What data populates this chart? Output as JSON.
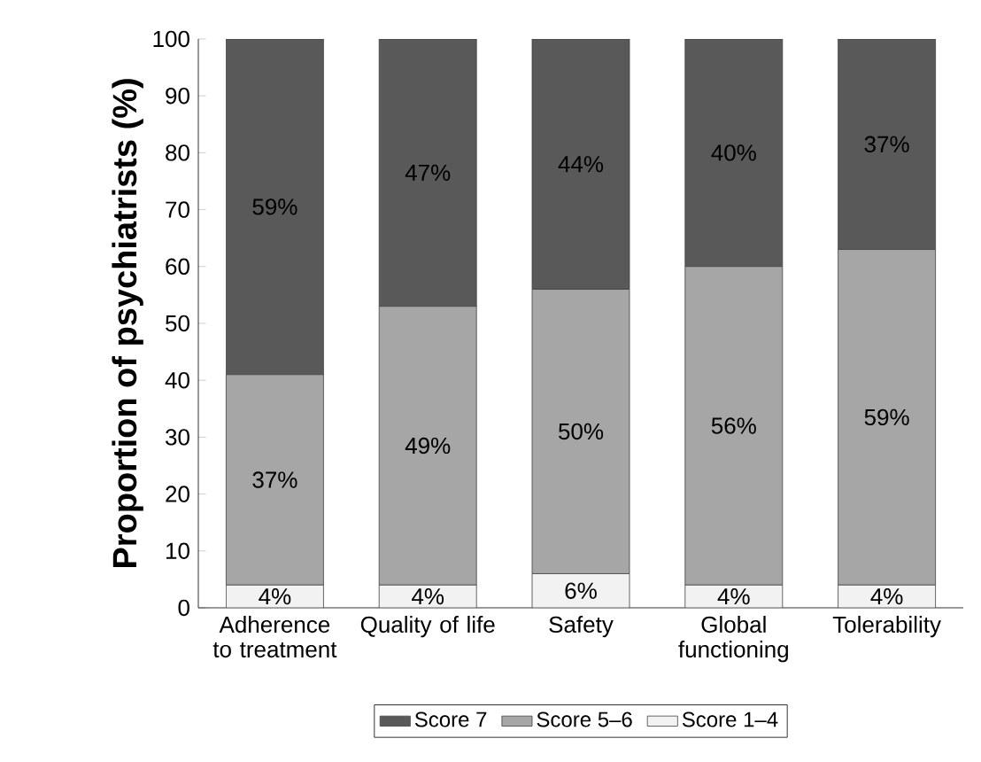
{
  "chart_data": {
    "type": "bar",
    "stacked": true,
    "ylabel": "Proportion of psychiatrists (%)",
    "categories": [
      "Adherence to treatment",
      "Quality of life",
      "Safety",
      "Global functioning",
      "Tolerability"
    ],
    "series": [
      {
        "name": "Score 1–4",
        "color": "#f2f2f2",
        "values": [
          4,
          4,
          6,
          4,
          4
        ],
        "value_labels": [
          "4%",
          "4%",
          "6%",
          "4%",
          "4%"
        ]
      },
      {
        "name": "Score 5–6",
        "color": "#a6a6a6",
        "values": [
          37,
          49,
          50,
          56,
          59
        ],
        "value_labels": [
          "37%",
          "49%",
          "50%",
          "56%",
          "59%"
        ]
      },
      {
        "name": "Score 7",
        "color": "#595959",
        "values": [
          59,
          47,
          44,
          40,
          37
        ],
        "value_labels": [
          "59%",
          "47%",
          "44%",
          "40%",
          "37%"
        ]
      }
    ],
    "ylim": [
      0,
      100
    ],
    "yticks": [
      0,
      10,
      20,
      30,
      40,
      50,
      60,
      70,
      80,
      90,
      100
    ],
    "legend": "bottom"
  }
}
